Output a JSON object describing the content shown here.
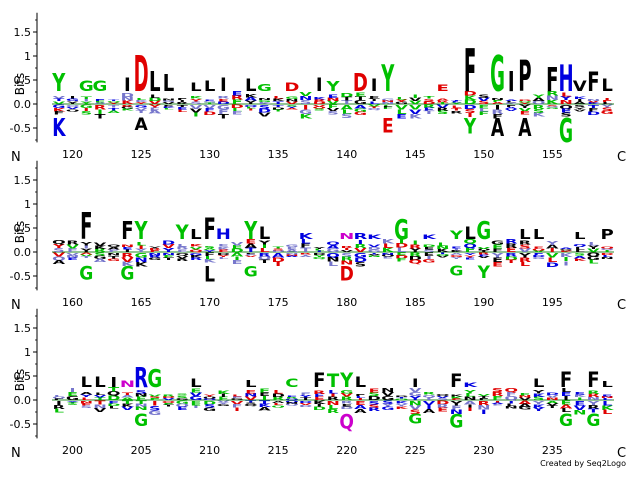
{
  "chart_data": {
    "type": "sequence-logo",
    "ylabel": "Bits",
    "yticks": [
      "1.5",
      "1",
      "0.5",
      "0.0",
      "-0.5"
    ],
    "ylim": [
      -0.8,
      1.9
    ],
    "n_label": "N",
    "c_label": "C",
    "colors": {
      "hydrophobic": "#000000",
      "polar": "#00c000",
      "basic": "#0000e0",
      "acidic": "#e00000",
      "amide": "#cc00cc",
      "minor_mix": "#7777cc"
    },
    "rows": [
      {
        "start": 119,
        "end": 159,
        "xticks": [
          "120",
          "125",
          "130",
          "135",
          "140",
          "145",
          "150",
          "155"
        ],
        "top_letters": [
          {
            "pos": 119,
            "aa": "Y",
            "bits": 0.38
          },
          {
            "pos": 121,
            "aa": "G",
            "bits": 0.22
          },
          {
            "pos": 122,
            "aa": "G",
            "bits": 0.22
          },
          {
            "pos": 124,
            "aa": "I",
            "bits": 0.28
          },
          {
            "pos": 125,
            "aa": "D",
            "bits": 0.75
          },
          {
            "pos": 126,
            "aa": "L",
            "bits": 0.42
          },
          {
            "pos": 127,
            "aa": "L",
            "bits": 0.35
          },
          {
            "pos": 129,
            "aa": "L",
            "bits": 0.18
          },
          {
            "pos": 130,
            "aa": "L",
            "bits": 0.22
          },
          {
            "pos": 131,
            "aa": "I",
            "bits": 0.28
          },
          {
            "pos": 133,
            "aa": "L",
            "bits": 0.25
          },
          {
            "pos": 134,
            "aa": "G",
            "bits": 0.15
          },
          {
            "pos": 136,
            "aa": "D",
            "bits": 0.18
          },
          {
            "pos": 138,
            "aa": "I",
            "bits": 0.28
          },
          {
            "pos": 139,
            "aa": "Y",
            "bits": 0.2
          },
          {
            "pos": 141,
            "aa": "D",
            "bits": 0.38
          },
          {
            "pos": 142,
            "aa": "I",
            "bits": 0.25
          },
          {
            "pos": 143,
            "aa": "Y",
            "bits": 0.55
          },
          {
            "pos": 147,
            "aa": "E",
            "bits": 0.14
          },
          {
            "pos": 149,
            "aa": "F",
            "bits": 0.9
          },
          {
            "pos": 151,
            "aa": "G",
            "bits": 0.75
          },
          {
            "pos": 152,
            "aa": "I",
            "bits": 0.42
          },
          {
            "pos": 153,
            "aa": "P",
            "bits": 0.65
          },
          {
            "pos": 155,
            "aa": "F",
            "bits": 0.5
          },
          {
            "pos": 156,
            "aa": "H",
            "bits": 0.55
          },
          {
            "pos": 157,
            "aa": "V",
            "bits": 0.22
          },
          {
            "pos": 158,
            "aa": "F",
            "bits": 0.4
          },
          {
            "pos": 159,
            "aa": "L",
            "bits": 0.25
          }
        ],
        "bottom_letters": [
          {
            "pos": 119,
            "aa": "K",
            "bits": 0.38
          },
          {
            "pos": 125,
            "aa": "A",
            "bits": 0.25
          },
          {
            "pos": 143,
            "aa": "E",
            "bits": 0.3
          },
          {
            "pos": 149,
            "aa": "Y",
            "bits": 0.32
          },
          {
            "pos": 151,
            "aa": "A",
            "bits": 0.38
          },
          {
            "pos": 153,
            "aa": "A",
            "bits": 0.38
          },
          {
            "pos": 156,
            "aa": "G",
            "bits": 0.5
          }
        ]
      },
      {
        "start": 159,
        "end": 199,
        "xticks": [
          "160",
          "165",
          "170",
          "175",
          "180",
          "185",
          "190",
          "195"
        ],
        "top_letters": [
          {
            "pos": 161,
            "aa": "F",
            "bits": 0.55
          },
          {
            "pos": 164,
            "aa": "F",
            "bits": 0.38
          },
          {
            "pos": 165,
            "aa": "Y",
            "bits": 0.38
          },
          {
            "pos": 168,
            "aa": "Y",
            "bits": 0.3
          },
          {
            "pos": 169,
            "aa": "L",
            "bits": 0.2
          },
          {
            "pos": 170,
            "aa": "F",
            "bits": 0.45
          },
          {
            "pos": 171,
            "aa": "H",
            "bits": 0.22
          },
          {
            "pos": 173,
            "aa": "Y",
            "bits": 0.38
          },
          {
            "pos": 174,
            "aa": "L",
            "bits": 0.25
          },
          {
            "pos": 177,
            "aa": "K",
            "bits": 0.12
          },
          {
            "pos": 180,
            "aa": "N",
            "bits": 0.12
          },
          {
            "pos": 181,
            "aa": "R",
            "bits": 0.12
          },
          {
            "pos": 182,
            "aa": "K",
            "bits": 0.1
          },
          {
            "pos": 184,
            "aa": "G",
            "bits": 0.42
          },
          {
            "pos": 186,
            "aa": "K",
            "bits": 0.1
          },
          {
            "pos": 188,
            "aa": "Y",
            "bits": 0.18
          },
          {
            "pos": 189,
            "aa": "L",
            "bits": 0.25
          },
          {
            "pos": 190,
            "aa": "G",
            "bits": 0.38
          },
          {
            "pos": 193,
            "aa": "L",
            "bits": 0.2
          },
          {
            "pos": 194,
            "aa": "L",
            "bits": 0.2
          },
          {
            "pos": 197,
            "aa": "L",
            "bits": 0.15
          },
          {
            "pos": 199,
            "aa": "P",
            "bits": 0.2
          }
        ],
        "bottom_letters": [
          {
            "pos": 161,
            "aa": "G",
            "bits": 0.28
          },
          {
            "pos": 164,
            "aa": "G",
            "bits": 0.28
          },
          {
            "pos": 170,
            "aa": "L",
            "bits": 0.32
          },
          {
            "pos": 173,
            "aa": "G",
            "bits": 0.22
          },
          {
            "pos": 180,
            "aa": "D",
            "bits": 0.3
          },
          {
            "pos": 188,
            "aa": "G",
            "bits": 0.2
          },
          {
            "pos": 190,
            "aa": "Y",
            "bits": 0.25
          }
        ]
      },
      {
        "start": 199,
        "end": 239,
        "xticks": [
          "200",
          "205",
          "210",
          "215",
          "220",
          "225",
          "230",
          "235"
        ],
        "top_letters": [
          {
            "pos": 201,
            "aa": "L",
            "bits": 0.22
          },
          {
            "pos": 202,
            "aa": "L",
            "bits": 0.22
          },
          {
            "pos": 203,
            "aa": "I",
            "bits": 0.2
          },
          {
            "pos": 204,
            "aa": "N",
            "bits": 0.14
          },
          {
            "pos": 205,
            "aa": "R",
            "bits": 0.42
          },
          {
            "pos": 206,
            "aa": "G",
            "bits": 0.38
          },
          {
            "pos": 209,
            "aa": "L",
            "bits": 0.18
          },
          {
            "pos": 213,
            "aa": "L",
            "bits": 0.15
          },
          {
            "pos": 216,
            "aa": "C",
            "bits": 0.18
          },
          {
            "pos": 218,
            "aa": "F",
            "bits": 0.3
          },
          {
            "pos": 219,
            "aa": "T",
            "bits": 0.28
          },
          {
            "pos": 220,
            "aa": "Y",
            "bits": 0.3
          },
          {
            "pos": 221,
            "aa": "L",
            "bits": 0.22
          },
          {
            "pos": 225,
            "aa": "I",
            "bits": 0.18
          },
          {
            "pos": 228,
            "aa": "F",
            "bits": 0.28
          },
          {
            "pos": 229,
            "aa": "K",
            "bits": 0.1
          },
          {
            "pos": 234,
            "aa": "L",
            "bits": 0.18
          },
          {
            "pos": 236,
            "aa": "F",
            "bits": 0.32
          },
          {
            "pos": 238,
            "aa": "F",
            "bits": 0.32
          },
          {
            "pos": 239,
            "aa": "L",
            "bits": 0.12
          }
        ],
        "bottom_letters": [
          {
            "pos": 205,
            "aa": "G",
            "bits": 0.25
          },
          {
            "pos": 220,
            "aa": "Q",
            "bits": 0.3
          },
          {
            "pos": 225,
            "aa": "G",
            "bits": 0.2
          },
          {
            "pos": 228,
            "aa": "G",
            "bits": 0.28
          },
          {
            "pos": 236,
            "aa": "G",
            "bits": 0.25
          },
          {
            "pos": 238,
            "aa": "G",
            "bits": 0.25
          }
        ]
      }
    ]
  },
  "credit": "Created by Seq2Logo"
}
